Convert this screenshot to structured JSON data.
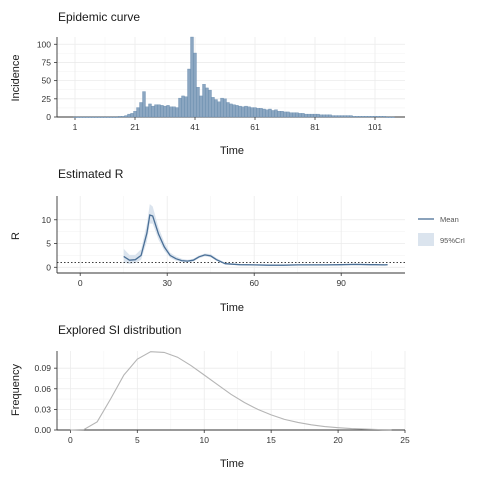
{
  "colors": {
    "bar_fill": "#8ba6c1",
    "bar_edge": "#5f84a8",
    "mean_line": "#4a6f96",
    "ci_band": "#dbe4ee",
    "si_line": "#b5b5b5",
    "grid": "#ebebeb",
    "axis": "#333333"
  },
  "chart_data": [
    {
      "type": "bar",
      "title": "Epidemic curve",
      "xlabel": "Time",
      "ylabel": "Incidence",
      "xlim": [
        -5,
        111
      ],
      "ylim": [
        0,
        110
      ],
      "xticks": [
        1,
        21,
        41,
        61,
        81,
        101
      ],
      "yticks": [
        0,
        25,
        50,
        75,
        100
      ],
      "grid": true,
      "x_start": 1,
      "values": [
        0,
        0,
        0,
        0,
        0,
        0,
        0,
        0,
        0,
        0,
        0,
        0,
        0,
        0,
        0,
        1,
        1,
        2,
        4,
        5,
        8,
        13,
        20,
        35,
        14,
        18,
        15,
        17,
        17,
        16,
        15,
        16,
        14,
        14,
        13,
        26,
        29,
        28,
        66,
        110,
        88,
        41,
        29,
        45,
        40,
        37,
        27,
        24,
        21,
        26,
        25,
        20,
        18,
        17,
        16,
        15,
        14,
        15,
        14,
        13,
        13,
        12,
        12,
        11,
        10,
        11,
        9,
        10,
        8,
        8,
        7,
        7,
        6,
        6,
        6,
        5,
        5,
        4,
        4,
        4,
        4,
        4,
        3,
        3,
        3,
        3,
        2,
        2,
        2,
        2,
        2,
        2,
        2,
        1,
        1,
        1,
        1,
        1,
        1,
        1,
        1,
        1,
        1,
        1,
        0,
        0,
        0
      ]
    },
    {
      "type": "line",
      "title": "Estimated R",
      "xlabel": "Time",
      "ylabel": "R",
      "xlim": [
        -8,
        112
      ],
      "ylim": [
        -1.2,
        15
      ],
      "xticks": [
        0,
        30,
        60,
        90
      ],
      "yticks": [
        0,
        5,
        10
      ],
      "grid": true,
      "reference_line": 1,
      "legend": {
        "position": "right",
        "mean_label": "Mean",
        "ci_label": "95%CrI"
      },
      "x": [
        15,
        17,
        19,
        21,
        23,
        24,
        25,
        27,
        29,
        31,
        33,
        35,
        37,
        39,
        41,
        43,
        45,
        47,
        50,
        55,
        60,
        65,
        70,
        75,
        80,
        85,
        90,
        95,
        100,
        102,
        105,
        106
      ],
      "mean": [
        2.3,
        1.5,
        1.6,
        2.5,
        7.2,
        11.0,
        10.8,
        7.0,
        4.3,
        2.5,
        1.8,
        1.4,
        1.3,
        1.5,
        2.2,
        2.6,
        2.4,
        1.6,
        0.75,
        0.55,
        0.5,
        0.45,
        0.45,
        0.5,
        0.5,
        0.5,
        0.55,
        0.6,
        0.55,
        0.55,
        0.5,
        0.55
      ],
      "lower": [
        1.0,
        0.7,
        0.9,
        1.6,
        5.4,
        9.2,
        9.2,
        5.8,
        3.5,
        2.0,
        1.4,
        1.1,
        1.0,
        1.2,
        1.9,
        2.3,
        2.1,
        1.35,
        0.6,
        0.42,
        0.38,
        0.34,
        0.34,
        0.38,
        0.38,
        0.38,
        0.42,
        0.45,
        0.4,
        0.4,
        0.35,
        0.4
      ],
      "upper": [
        3.9,
        2.6,
        2.6,
        3.8,
        9.2,
        13.3,
        12.8,
        8.4,
        5.3,
        3.1,
        2.3,
        1.8,
        1.6,
        1.8,
        2.5,
        2.9,
        2.8,
        1.95,
        0.92,
        0.7,
        0.63,
        0.58,
        0.58,
        0.63,
        0.63,
        0.63,
        0.7,
        0.77,
        0.72,
        0.72,
        0.68,
        0.72
      ]
    },
    {
      "type": "line",
      "title": "Explored SI distribution",
      "xlabel": "Time",
      "ylabel": "Frequency",
      "xlim": [
        -1,
        25
      ],
      "ylim": [
        0,
        0.115
      ],
      "xticks": [
        0,
        5,
        10,
        15,
        20,
        25
      ],
      "yticks": [
        0.0,
        0.03,
        0.06,
        0.09
      ],
      "ytick_labels": [
        "0.00",
        "0.03",
        "0.06",
        "0.09"
      ],
      "grid": true,
      "x": [
        0,
        1,
        2,
        3,
        4,
        5,
        6,
        7,
        8,
        9,
        10,
        11,
        12,
        13,
        14,
        15,
        16,
        17,
        18,
        19,
        20,
        21,
        22,
        23,
        24
      ],
      "y": [
        0,
        0.0006,
        0.012,
        0.045,
        0.08,
        0.103,
        0.114,
        0.113,
        0.106,
        0.094,
        0.08,
        0.066,
        0.052,
        0.04,
        0.03,
        0.022,
        0.0155,
        0.011,
        0.0075,
        0.005,
        0.0033,
        0.0021,
        0.0013,
        0.0008,
        0.0005
      ]
    }
  ]
}
